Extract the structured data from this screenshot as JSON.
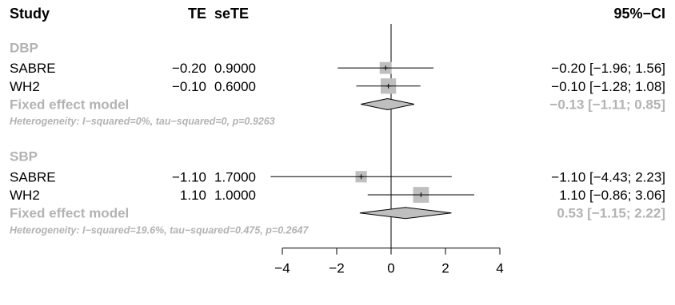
{
  "header": {
    "study": "Study",
    "te": "TE",
    "sete": "seTE",
    "ci": "95%−CI"
  },
  "chart_data": {
    "type": "forest",
    "groups": [
      {
        "name": "DBP",
        "studies": [
          {
            "label": "SABRE",
            "te_text": "−0.20",
            "sete_text": "0.9000",
            "te": -0.2,
            "lower": -1.96,
            "upper": 1.56,
            "weight": 0.31,
            "ci_text": "−0.20  [−1.96; 1.56]"
          },
          {
            "label": "WH2",
            "te_text": "−0.10",
            "sete_text": "0.6000",
            "te": -0.1,
            "lower": -1.28,
            "upper": 1.08,
            "weight": 0.69,
            "ci_text": "−0.10  [−1.28; 1.08]"
          }
        ],
        "pooled": {
          "label": "Fixed effect model",
          "te": -0.13,
          "lower": -1.11,
          "upper": 0.85,
          "ci_text": "−0.13 [−1.11;  0.85]"
        },
        "heterogeneity": "Heterogeneity: I−squared=0%, tau−squared=0, p=0.9263"
      },
      {
        "name": "SBP",
        "studies": [
          {
            "label": "SABRE",
            "te_text": "−1.10",
            "sete_text": "1.7000",
            "te": -1.1,
            "lower": -4.43,
            "upper": 2.23,
            "weight": 0.26,
            "ci_text": "−1.10  [−4.43; 2.23]"
          },
          {
            "label": "WH2",
            "te_text": "1.10",
            "sete_text": "1.0000",
            "te": 1.1,
            "lower": -0.86,
            "upper": 3.06,
            "weight": 0.74,
            "ci_text": "1.10  [−0.86; 3.06]"
          }
        ],
        "pooled": {
          "label": "Fixed effect model",
          "te": 0.53,
          "lower": -1.15,
          "upper": 2.22,
          "ci_text": "0.53 [−1.15;  2.22]"
        },
        "heterogeneity": "Heterogeneity: I−squared=19.6%, tau−squared=0.475, p=0.2647"
      }
    ],
    "x_axis": {
      "ticks": [
        -4,
        -2,
        0,
        2,
        4
      ],
      "tick_labels": [
        "−4",
        "−2",
        "0",
        "2",
        "4"
      ],
      "range": [
        -4,
        4
      ]
    },
    "null_line": 0,
    "colors": {
      "text": "#000000",
      "grey_text": "#b3b3b3",
      "square": "#bfbfbf",
      "diamond": "#bfbfbf"
    }
  }
}
